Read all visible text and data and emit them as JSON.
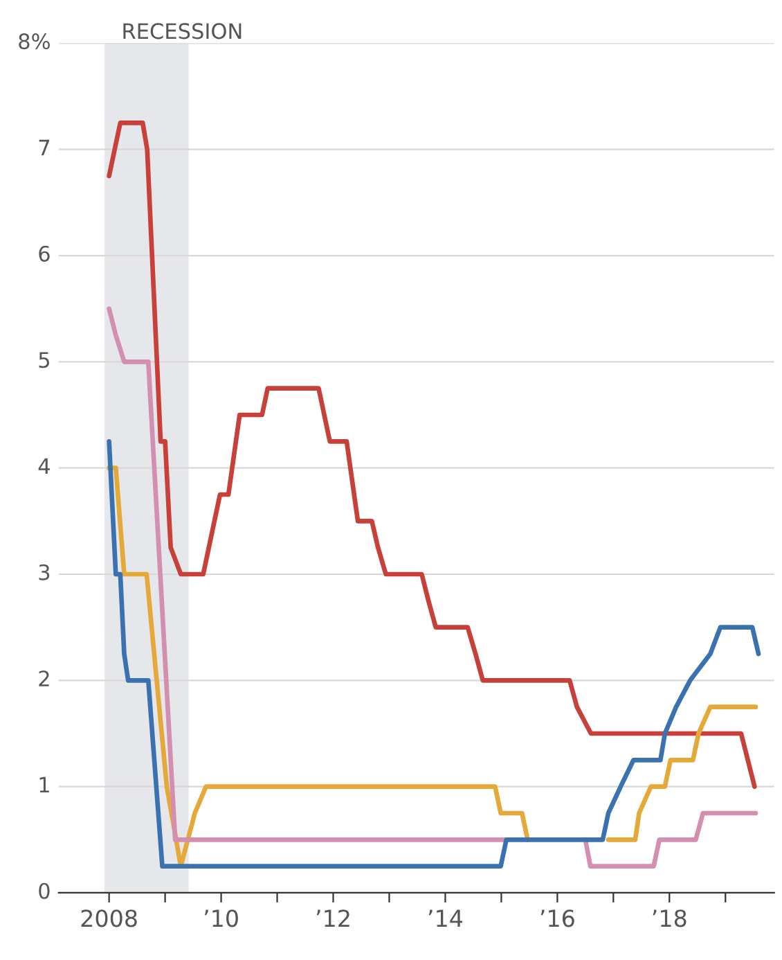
{
  "chart_data": {
    "type": "line",
    "line_style": "solid",
    "marker": "none",
    "grid": "y",
    "xlim": [
      2007.1,
      2019.87
    ],
    "ylim": [
      0,
      8
    ],
    "xticks": [
      {
        "value": 2008,
        "label": "2008"
      },
      {
        "value": 2009,
        "label": null
      },
      {
        "value": 2010,
        "label": "’10"
      },
      {
        "value": 2011,
        "label": null
      },
      {
        "value": 2012,
        "label": "’12"
      },
      {
        "value": 2013,
        "label": null
      },
      {
        "value": 2014,
        "label": "’14"
      },
      {
        "value": 2015,
        "label": null
      },
      {
        "value": 2016,
        "label": "’16"
      },
      {
        "value": 2017,
        "label": null
      },
      {
        "value": 2018,
        "label": "’18"
      },
      {
        "value": 2019,
        "label": null
      }
    ],
    "yticks": [
      0,
      1,
      2,
      3,
      4,
      5,
      6,
      7,
      {
        "value": 8,
        "label": "8%"
      }
    ],
    "bands": [
      {
        "axis": "x",
        "from": 2007.92,
        "to": 2009.42,
        "label": "RECESSION",
        "color": "#e6e7ea"
      }
    ],
    "series": [
      {
        "color": "#c8403a",
        "x": [
          2008.0,
          2008.2,
          2008.6,
          2008.68,
          2008.92,
          2009.0,
          2009.1,
          2009.28,
          2009.68,
          2009.98,
          2010.13,
          2010.33,
          2010.73,
          2010.83,
          2011.74,
          2011.94,
          2012.24,
          2012.44,
          2012.69,
          2012.8,
          2012.94,
          2013.58,
          2013.7,
          2013.83,
          2014.4,
          2014.54,
          2014.67,
          2016.22,
          2016.35,
          2016.6,
          2019.28,
          2019.52
        ],
        "values": [
          6.75,
          7.25,
          7.25,
          7.0,
          4.25,
          4.25,
          3.25,
          3.0,
          3.0,
          3.75,
          3.75,
          4.5,
          4.5,
          4.75,
          4.75,
          4.25,
          4.25,
          3.5,
          3.5,
          3.25,
          3.0,
          3.0,
          2.75,
          2.5,
          2.5,
          2.25,
          2.0,
          2.0,
          1.75,
          1.5,
          1.5,
          1.0
        ]
      },
      {
        "color": "#e5a93a",
        "x": [
          2008.0,
          2008.12,
          2008.27,
          2008.67,
          2009.03,
          2009.28,
          2009.53,
          2009.73,
          2014.89,
          2014.99,
          2015.37,
          2015.47,
          2016.0,
          2016.91,
          2017.39,
          2017.46,
          2017.67,
          2017.92,
          2018.02,
          2018.42,
          2018.52,
          2018.73,
          2019.54
        ],
        "values": [
          4.0,
          4.0,
          3.0,
          3.0,
          1.0,
          0.25,
          0.75,
          1.0,
          1.0,
          0.75,
          0.75,
          0.5,
          null,
          0.5,
          0.5,
          0.75,
          1.0,
          1.0,
          1.25,
          1.25,
          1.5,
          1.75,
          1.75
        ]
      },
      {
        "color": "#d48fb0",
        "x": [
          2008.0,
          2008.12,
          2008.27,
          2008.7,
          2009.18,
          2015.09,
          2016.0,
          2016.5,
          2016.59,
          2017.72,
          2017.82,
          2018.47,
          2018.6,
          2019.54
        ],
        "values": [
          5.5,
          5.25,
          5.0,
          5.0,
          0.5,
          0.5,
          null,
          0.5,
          0.25,
          0.25,
          0.5,
          0.5,
          0.75,
          0.75
        ]
      },
      {
        "color": "#3a72b0",
        "x": [
          2008.0,
          2008.12,
          2008.2,
          2008.27,
          2008.34,
          2008.7,
          2008.95,
          2014.99,
          2015.09,
          2016.81,
          2016.91,
          2017.13,
          2017.36,
          2017.84,
          2017.92,
          2018.12,
          2018.37,
          2018.73,
          2018.91,
          2019.48,
          2019.59
        ],
        "values": [
          4.25,
          3.0,
          3.0,
          2.25,
          2.0,
          2.0,
          0.25,
          0.25,
          0.5,
          0.5,
          0.75,
          1.0,
          1.25,
          1.25,
          1.5,
          1.75,
          2.0,
          2.25,
          2.5,
          2.5,
          2.25
        ]
      }
    ]
  }
}
